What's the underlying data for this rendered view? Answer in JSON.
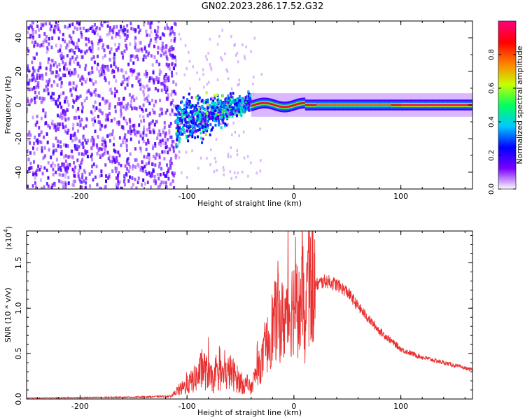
{
  "title": "GN02.2023.286.17.52.G32",
  "chart_data": [
    {
      "type": "heatmap",
      "xlabel": "Height of straight line (km)",
      "ylabel": "Frequency (Hz)",
      "xlim": [
        -250,
        167
      ],
      "ylim": [
        -50,
        50
      ],
      "xticks": [
        -200,
        -100,
        0,
        100
      ],
      "yticks": [
        -40,
        -20,
        0,
        20,
        40
      ],
      "colorbar": {
        "label": "Normalized spectral amplitude",
        "range": [
          0,
          1
        ],
        "ticks": [
          0.0,
          0.2,
          0.4,
          0.6,
          0.8
        ],
        "colormap": [
          "#ffffff",
          "#7a00ff",
          "#0000ff",
          "#00c8ff",
          "#00ff60",
          "#c8ff00",
          "#ff8000",
          "#ff0000",
          "#ff0080"
        ]
      },
      "regions": [
        {
          "description": "broadband noise",
          "x_range": [
            -250,
            -110
          ],
          "freq_range": [
            -50,
            50
          ],
          "amplitude": 0.1
        },
        {
          "description": "scattered signal",
          "x_range": [
            -110,
            -40
          ],
          "freq_range": [
            -40,
            15
          ],
          "amplitude": 0.3
        },
        {
          "description": "stable carrier near 0 Hz",
          "x_range": [
            -40,
            167
          ],
          "freq_range": [
            -3,
            3
          ],
          "amplitude": 0.8
        }
      ]
    },
    {
      "type": "line",
      "xlabel": "Height of straight line (km)",
      "ylabel": "SNR (10 * v/v)",
      "yscale_label": "(x10",
      "yscale_exp": "4",
      "xlim": [
        -250,
        167
      ],
      "ylim": [
        0,
        18500
      ],
      "xticks": [
        -200,
        -100,
        0,
        100
      ],
      "yticks": [
        0,
        5000,
        10000,
        15000
      ],
      "ytick_labels": [
        "0.0",
        "0.5",
        "1.0",
        "1.5"
      ],
      "color": "#e83030",
      "series": [
        {
          "x": [
            -250,
            -200,
            -150,
            -115,
            -110,
            -100,
            -90,
            -85,
            -80,
            -75,
            -70,
            -65,
            -60,
            -55,
            -50,
            -45,
            -40,
            -35,
            -30,
            -25,
            -20,
            -15,
            -10,
            -5,
            0,
            5,
            10,
            15,
            20,
            25,
            30,
            35,
            40,
            45,
            50,
            55,
            60,
            65,
            70,
            80,
            90,
            100,
            110,
            120,
            130,
            140,
            150,
            160,
            167
          ],
          "y": [
            100,
            150,
            200,
            300,
            800,
            1500,
            2500,
            3500,
            2500,
            2000,
            2800,
            2500,
            3000,
            2500,
            1800,
            1500,
            1200,
            3000,
            4000,
            6000,
            8000,
            9000,
            8500,
            9500,
            10500,
            9500,
            11500,
            12000,
            12500,
            12800,
            13000,
            12800,
            12600,
            12200,
            11800,
            11000,
            10200,
            9500,
            8800,
            7500,
            6500,
            5500,
            5000,
            4600,
            4300,
            4000,
            3700,
            3400,
            3200
          ]
        }
      ],
      "spikes": [
        {
          "x": -80,
          "y": 6800
        },
        {
          "x": -15,
          "y": 15200
        },
        {
          "x": 10,
          "y": 18500
        }
      ]
    }
  ]
}
